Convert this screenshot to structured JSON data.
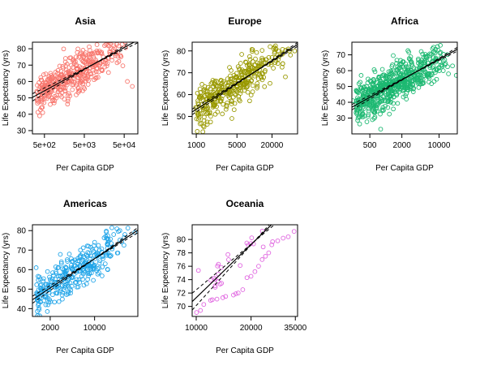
{
  "chart_data": [
    {
      "type": "scatter",
      "title": "Asia",
      "xlabel": "Per Capita GDP",
      "ylabel": "Life Expectancy (yrs)",
      "x_scale": "log",
      "xlim": [
        250,
        110000
      ],
      "ylim": [
        28,
        84
      ],
      "x_ticks": [
        500,
        5000,
        50000
      ],
      "x_tick_labels": [
        "5e+02",
        "5e+03",
        "5e+04"
      ],
      "y_ticks": [
        30,
        40,
        50,
        60,
        70,
        80
      ],
      "color": "#F8766D",
      "grid": false,
      "n_points": 396,
      "trend": {
        "a": 18.57,
        "b": 13.23,
        "band": 1.6
      },
      "series": [
        {
          "x": [
            331,
            380,
            420,
            500,
            600,
            700,
            850,
            1000,
            1200,
            1500,
            2000,
            2500,
            3000,
            4000,
            5000,
            6000,
            8000,
            10000,
            15000,
            20000,
            30000,
            40000,
            60000,
            80000
          ],
          "y": [
            48,
            39,
            44,
            52,
            58,
            46,
            57,
            50,
            62,
            56,
            60,
            55,
            65,
            60,
            68,
            63,
            70,
            66,
            72,
            74,
            77,
            76,
            60,
            57
          ]
        }
      ]
    },
    {
      "type": "scatter",
      "title": "Europe",
      "xlabel": "Per Capita GDP",
      "ylabel": "Life Expectancy (yrs)",
      "x_scale": "log",
      "xlim": [
        850,
        55000
      ],
      "ylim": [
        42,
        84
      ],
      "x_ticks": [
        1000,
        5000,
        20000
      ],
      "x_tick_labels": [
        "1000",
        "5000",
        "20000"
      ],
      "y_ticks": [
        50,
        60,
        70,
        80
      ],
      "color": "#999900",
      "grid": false,
      "n_points": 360,
      "trend": {
        "a": 2.04,
        "b": 17.07,
        "band": 0.9
      },
      "series": [
        {
          "x": [
            973,
            1300,
            1800,
            2400,
            3000,
            4000,
            5000,
            6000,
            8000,
            10000,
            13000,
            16000,
            20000,
            25000,
            30000,
            40000,
            49000
          ],
          "y": [
            54,
            43,
            58,
            62,
            62,
            66,
            68,
            70,
            72,
            72,
            74,
            76,
            77,
            78,
            79,
            80,
            80
          ]
        }
      ]
    },
    {
      "type": "scatter",
      "title": "Africa",
      "xlabel": "Per Capita GDP",
      "ylabel": "Life Expectancy (yrs)",
      "x_scale": "log",
      "xlim": [
        230,
        22000
      ],
      "ylim": [
        20,
        78
      ],
      "x_ticks": [
        500,
        2000,
        10000
      ],
      "x_tick_labels": [
        "500",
        "2000",
        "10000"
      ],
      "y_ticks": [
        30,
        40,
        50,
        60,
        70
      ],
      "color": "#1CB871",
      "grid": false,
      "n_points": 624,
      "trend": {
        "a": -6.8,
        "b": 18.5,
        "band": 1.2
      },
      "series": [
        {
          "x": [
            241,
            300,
            400,
            500,
            600,
            700,
            800,
            1000,
            1200,
            1500,
            2000,
            2500,
            3000,
            4000,
            5000,
            6000,
            8000,
            10000,
            12000,
            15000,
            21000
          ],
          "y": [
            41,
            30,
            45,
            43,
            38,
            46,
            23,
            50,
            44,
            52,
            56,
            48,
            60,
            52,
            65,
            58,
            72,
            62,
            60,
            58,
            57
          ]
        }
      ]
    },
    {
      "type": "scatter",
      "title": "Americas",
      "xlabel": "Per Capita GDP",
      "ylabel": "Life Expectancy (yrs)",
      "x_scale": "log",
      "xlim": [
        1050,
        48000
      ],
      "ylim": [
        36,
        83
      ],
      "x_ticks": [
        2000,
        10000
      ],
      "x_tick_labels": [
        "2000",
        "10000"
      ],
      "y_ticks": [
        40,
        50,
        60,
        70,
        80
      ],
      "color": "#1FA4E8",
      "grid": false,
      "n_points": 300,
      "trend": {
        "a": -20.4,
        "b": 21.5,
        "band": 1.3
      },
      "series": [
        {
          "x": [
            1202,
            1400,
            1700,
            2000,
            2500,
            3000,
            3500,
            4000,
            5000,
            6000,
            7000,
            8000,
            10000,
            12000,
            15000,
            20000,
            25000,
            30000,
            42951
          ],
          "y": [
            61,
            52,
            42,
            55,
            48,
            64,
            58,
            68,
            62,
            70,
            66,
            72,
            74,
            70,
            77,
            78,
            80,
            78,
            79
          ]
        }
      ]
    },
    {
      "type": "scatter",
      "title": "Oceania",
      "xlabel": "Per Capita GDP",
      "ylabel": "Life Expectancy (yrs)",
      "x_scale": "log",
      "xlim": [
        9500,
        36000
      ],
      "ylim": [
        68.5,
        82.2
      ],
      "x_ticks": [
        10000,
        20000,
        35000
      ],
      "x_tick_labels": [
        "10000",
        "20000",
        "35000"
      ],
      "y_ticks": [
        70,
        72,
        74,
        76,
        78,
        80
      ],
      "color": "#E066E0",
      "grid": false,
      "n_points": 24,
      "trend": {
        "a": -34.3,
        "b": 26.4,
        "band": 0.9
      },
      "series": [
        {
          "x": [
            10040,
            10556,
            11000,
            12000,
            12247,
            13000,
            14000,
            14500,
            16000,
            16500,
            17000,
            18000,
            19000,
            20000,
            21000,
            22000,
            23000,
            24000,
            25000,
            26000,
            28000,
            30000,
            32000,
            34435
          ],
          "y": [
            69.1,
            69.4,
            70.3,
            70.9,
            71.0,
            71.1,
            71.3,
            71.5,
            71.7,
            71.9,
            72.0,
            72.5,
            74.3,
            74.5,
            75.2,
            76.0,
            77.0,
            77.5,
            78.0,
            79.2,
            79.8,
            80.2,
            80.4,
            81.2
          ]
        }
      ]
    }
  ]
}
